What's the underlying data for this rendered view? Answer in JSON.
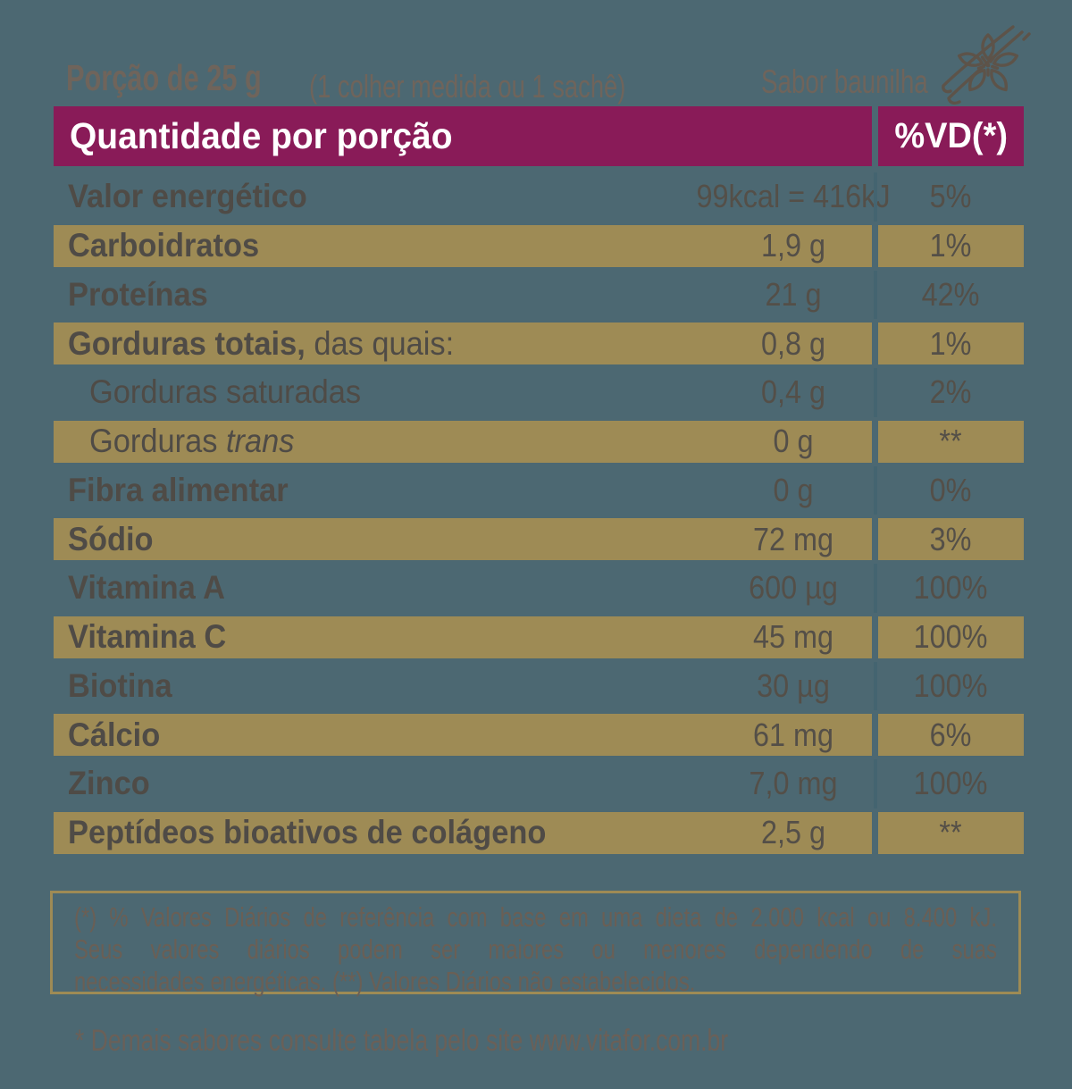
{
  "colors": {
    "background": "#4c6872",
    "gold": "#9e8b55",
    "magenta": "#891b58",
    "label_text": "#4f4b46",
    "value_text": "#544f48",
    "muted_text": "#6f645b",
    "header_text": "#ffffff",
    "column_divider": "#446470",
    "icon_stroke": "#5d5349"
  },
  "topline": {
    "serving": "Porção de 25 g",
    "serving_note": "(1 colher medida ou 1 sachê)",
    "flavor": "Sabor baunilha",
    "icon": "vanilla-flower-icon"
  },
  "table": {
    "header": {
      "quantity_col": "Quantidade por porção",
      "dv_col": "%VD(*)"
    },
    "rows": [
      {
        "style": "plain",
        "indent": false,
        "label_parts": [
          {
            "text": "Valor energético",
            "bold": true
          }
        ],
        "value": "99kcal = 416kJ",
        "vd": "5%"
      },
      {
        "style": "gold",
        "indent": false,
        "label_parts": [
          {
            "text": "Carboidratos",
            "bold": true
          }
        ],
        "value": "1,9 g",
        "vd": "1%"
      },
      {
        "style": "plain",
        "indent": false,
        "label_parts": [
          {
            "text": "Proteínas",
            "bold": true
          }
        ],
        "value": "21 g",
        "vd": "42%"
      },
      {
        "style": "gold",
        "indent": false,
        "label_parts": [
          {
            "text": "Gorduras totais,",
            "bold": true
          },
          {
            "text": " das quais:",
            "bold": false
          }
        ],
        "value": "0,8 g",
        "vd": "1%"
      },
      {
        "style": "plain",
        "indent": true,
        "label_parts": [
          {
            "text": "Gorduras saturadas",
            "bold": false
          }
        ],
        "value": "0,4 g",
        "vd": "2%"
      },
      {
        "style": "gold",
        "indent": true,
        "label_parts": [
          {
            "text": "Gorduras ",
            "bold": false
          },
          {
            "text": "trans",
            "bold": false,
            "italic": true
          }
        ],
        "value": "0 g",
        "vd": "**"
      },
      {
        "style": "plain",
        "indent": false,
        "label_parts": [
          {
            "text": "Fibra alimentar",
            "bold": true
          }
        ],
        "value": "0 g",
        "vd": "0%"
      },
      {
        "style": "gold",
        "indent": false,
        "label_parts": [
          {
            "text": "Sódio",
            "bold": true
          }
        ],
        "value": "72 mg",
        "vd": "3%"
      },
      {
        "style": "plain",
        "indent": false,
        "label_parts": [
          {
            "text": "Vitamina A",
            "bold": true
          }
        ],
        "value": "600 µg",
        "vd": "100%"
      },
      {
        "style": "gold",
        "indent": false,
        "label_parts": [
          {
            "text": "Vitamina C",
            "bold": true
          }
        ],
        "value": "45 mg",
        "vd": "100%"
      },
      {
        "style": "plain",
        "indent": false,
        "label_parts": [
          {
            "text": "Biotina",
            "bold": true
          }
        ],
        "value": "30 µg",
        "vd": "100%"
      },
      {
        "style": "gold",
        "indent": false,
        "label_parts": [
          {
            "text": "Cálcio",
            "bold": true
          }
        ],
        "value": "61 mg",
        "vd": "6%"
      },
      {
        "style": "plain",
        "indent": false,
        "label_parts": [
          {
            "text": "Zinco",
            "bold": true
          }
        ],
        "value": "7,0 mg",
        "vd": "100%"
      },
      {
        "style": "gold",
        "indent": false,
        "label_parts": [
          {
            "text": "Peptídeos bioativos de colágeno",
            "bold": true
          }
        ],
        "value": "2,5 g",
        "vd": "**"
      }
    ]
  },
  "footnote": {
    "line1": "(*) % Valores Diários de referência com base em uma dieta de 2.000 kcal ou 8.400 kJ.",
    "line2": "Seus valores diários podem ser maiores ou menores dependendo de suas",
    "line3": "necessidades energéticas. (**) Valores Diários não estabelecidos."
  },
  "bottom_note": "* Demais sabores consulte tabela pelo site www.vitafor.com.br"
}
